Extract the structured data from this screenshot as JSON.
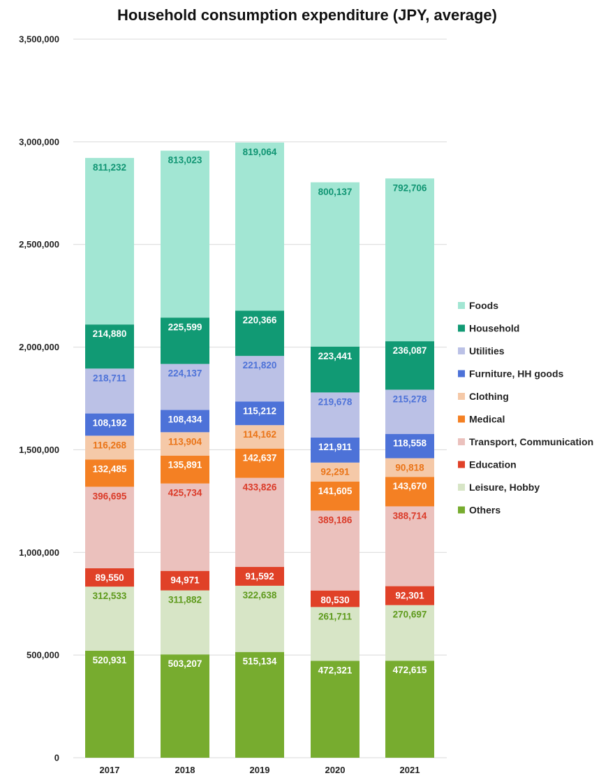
{
  "chart_data": {
    "type": "bar",
    "stacked": true,
    "title": "Household consumption expenditure (JPY, average)",
    "categories": [
      "2017",
      "2018",
      "2019",
      "2020",
      "2021"
    ],
    "ylim": [
      0,
      3500000
    ],
    "yticks": [
      {
        "value": 0,
        "label": "0"
      },
      {
        "value": 500000,
        "label": "500,000"
      },
      {
        "value": 1000000,
        "label": "1,000,000"
      },
      {
        "value": 1500000,
        "label": "1,500,000"
      },
      {
        "value": 2000000,
        "label": "2,000,000"
      },
      {
        "value": 2500000,
        "label": "2,500,000"
      },
      {
        "value": 3000000,
        "label": "3,000,000"
      },
      {
        "value": 3500000,
        "label": "3,500,000"
      }
    ],
    "grid": true,
    "legend_position": "right",
    "series": [
      {
        "name": "Others",
        "color": "#77ac2f",
        "label_color": "#ffffff",
        "values": [
          520931,
          503207,
          515134,
          472321,
          472615
        ],
        "labels": [
          "520,931",
          "503,207",
          "515,134",
          "472,321",
          "472,615"
        ]
      },
      {
        "name": "Leisure, Hobby",
        "color": "#d7e5c6",
        "label_color": "#5e9a1c",
        "values": [
          312533,
          311882,
          322638,
          261711,
          270697
        ],
        "labels": [
          "312,533",
          "311,882",
          "322,638",
          "261,711",
          "270,697"
        ]
      },
      {
        "name": "Education",
        "color": "#e04128",
        "label_color": "#ffffff",
        "values": [
          89550,
          94971,
          91592,
          80530,
          92301
        ],
        "labels": [
          "89,550",
          "94,971",
          "91,592",
          "80,530",
          "92,301"
        ]
      },
      {
        "name": "Transport, Communication",
        "color": "#ebc1bd",
        "label_color": "#db3b29",
        "values": [
          396695,
          425734,
          433826,
          389186,
          388714
        ],
        "labels": [
          "396,695",
          "425,734",
          "433,826",
          "389,186",
          "388,714"
        ]
      },
      {
        "name": "Medical",
        "color": "#f48023",
        "label_color": "#ffffff",
        "values": [
          132485,
          135891,
          142637,
          141605,
          143670
        ],
        "labels": [
          "132,485",
          "135,891",
          "142,637",
          "141,605",
          "143,670"
        ]
      },
      {
        "name": "Clothing",
        "color": "#f5c9a8",
        "label_color": "#ea7417",
        "values": [
          116268,
          113904,
          114162,
          92291,
          90818
        ],
        "labels": [
          "116,268",
          "113,904",
          "114,162",
          "92,291",
          "90,818"
        ]
      },
      {
        "name": "Furniture, HH goods",
        "color": "#4d72d8",
        "label_color": "#ffffff",
        "values": [
          108192,
          108434,
          115212,
          121911,
          118558
        ],
        "labels": [
          "108,192",
          "108,434",
          "115,212",
          "121,911",
          "118,558"
        ]
      },
      {
        "name": "Utilities",
        "color": "#bbc1e6",
        "label_color": "#4d72d8",
        "values": [
          218711,
          224137,
          221820,
          219678,
          215278
        ],
        "labels": [
          "218,711",
          "224,137",
          "221,820",
          "219,678",
          "215,278"
        ]
      },
      {
        "name": "Household",
        "color": "#119a74",
        "label_color": "#ffffff",
        "values": [
          214880,
          225599,
          220366,
          223441,
          236087
        ],
        "labels": [
          "214,880",
          "225,599",
          "220,366",
          "223,441",
          "236,087"
        ]
      },
      {
        "name": "Foods",
        "color": "#a2e6d3",
        "label_color": "#109573",
        "values": [
          811232,
          813023,
          819064,
          800137,
          792706
        ],
        "labels": [
          "811,232",
          "813,023",
          "819,064",
          "800,137",
          "792,706"
        ]
      }
    ]
  }
}
